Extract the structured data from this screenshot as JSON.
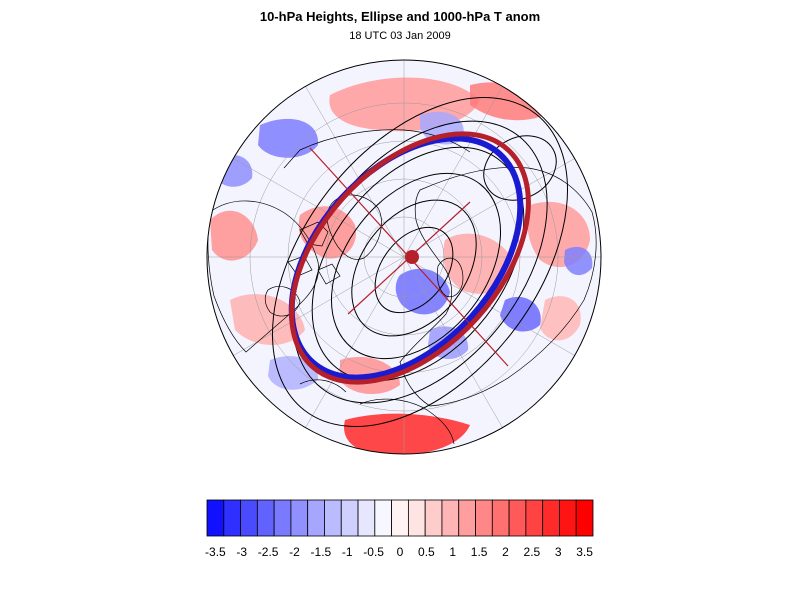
{
  "title": "10-hPa Heights, Ellipse and 1000-hPa T anom",
  "subtitle": "18 UTC 03 Jan 2009",
  "map": {
    "projection": "north-polar-stereographic",
    "fields": [
      "10-hPa geopotential height contours (black)",
      "vortex ellipse (red/blue)",
      "1000-hPa temperature anomaly shading"
    ],
    "colors": {
      "ellipse_outer": "#b5202a",
      "ellipse_inner": "#1a1ad0",
      "center_marker": "#b5202a",
      "contour": "#000000",
      "coastline": "#000000",
      "graticule": "#9a9a9a"
    }
  },
  "colorbar": {
    "colors": [
      "#1111ff",
      "#2f2fff",
      "#4a4aff",
      "#6262ff",
      "#7a7aff",
      "#9090ff",
      "#a6a6ff",
      "#bbbbff",
      "#d0d0ff",
      "#e6e6ff",
      "#f7f7ff",
      "#fff3f3",
      "#ffe4e4",
      "#ffcccc",
      "#ffb5b5",
      "#ff9e9e",
      "#ff8787",
      "#ff7070",
      "#ff5959",
      "#ff4242",
      "#ff2b2b",
      "#ff1414",
      "#ff0000"
    ],
    "tick_labels": [
      "-3.5",
      "-3",
      "-2.5",
      "-2",
      "-1.5",
      "-1",
      "-0.5",
      "0",
      "0.5",
      "1",
      "1.5",
      "2",
      "2.5",
      "3",
      "3.5"
    ]
  }
}
